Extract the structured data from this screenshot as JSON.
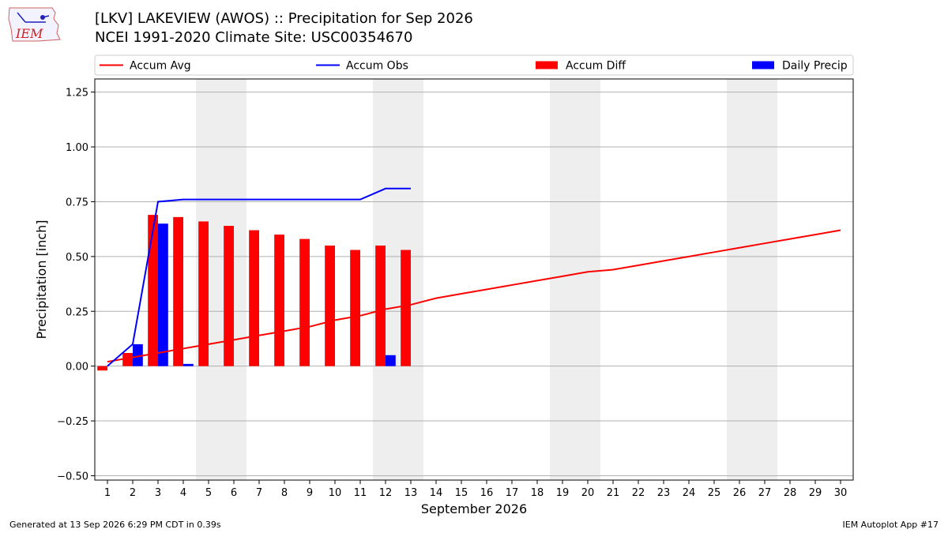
{
  "title": {
    "line1": "[LKV] LAKEVIEW (AWOS) :: Precipitation for Sep 2026",
    "line2": "NCEI 1991-2020 Climate Site: USC00354670"
  },
  "logo_text": "IEM",
  "footer": {
    "left": "Generated at 13 Sep 2026 6:29 PM CDT in 0.39s",
    "right": "IEM Autoplot App #17"
  },
  "colors": {
    "accum_avg": "#ff0000",
    "accum_obs": "#0000ff",
    "accum_diff": "#ff0000",
    "daily_precip": "#0000ff",
    "weekend_shade": "#eeeeee",
    "grid": "#b0b0b0"
  },
  "chart_data": {
    "type": "bar",
    "xlabel": "September 2026",
    "ylabel": "Precipitation [inch]",
    "ylim": [
      -0.52,
      1.31
    ],
    "yticks": [
      -0.5,
      -0.25,
      0.0,
      0.25,
      0.5,
      0.75,
      1.0,
      1.25
    ],
    "ytick_labels": [
      "−0.50",
      "−0.25",
      "0.00",
      "0.25",
      "0.50",
      "0.75",
      "1.00",
      "1.25"
    ],
    "x": [
      1,
      2,
      3,
      4,
      5,
      6,
      7,
      8,
      9,
      10,
      11,
      12,
      13,
      14,
      15,
      16,
      17,
      18,
      19,
      20,
      21,
      22,
      23,
      24,
      25,
      26,
      27,
      28,
      29,
      30
    ],
    "xlim": [
      0.5,
      30.5
    ],
    "grid": "horizontal",
    "legend_position": "top",
    "weekend_shading": [
      [
        5,
        6
      ],
      [
        12,
        13
      ],
      [
        19,
        20
      ],
      [
        26,
        27
      ]
    ],
    "series": [
      {
        "name": "Accum Avg",
        "type": "line",
        "x": [
          1,
          2,
          3,
          4,
          5,
          6,
          7,
          8,
          9,
          10,
          11,
          12,
          13,
          14,
          15,
          16,
          17,
          18,
          19,
          20,
          21,
          22,
          23,
          24,
          25,
          26,
          27,
          28,
          29,
          30
        ],
        "values": [
          0.02,
          0.04,
          0.06,
          0.08,
          0.1,
          0.12,
          0.14,
          0.16,
          0.18,
          0.21,
          0.23,
          0.26,
          0.28,
          0.31,
          0.33,
          0.35,
          0.37,
          0.39,
          0.41,
          0.43,
          0.44,
          0.46,
          0.48,
          0.5,
          0.52,
          0.54,
          0.56,
          0.58,
          0.6,
          0.62
        ]
      },
      {
        "name": "Accum Obs",
        "type": "line",
        "x": [
          1,
          2,
          3,
          4,
          5,
          6,
          7,
          8,
          9,
          10,
          11,
          12,
          13
        ],
        "values": [
          0.0,
          0.1,
          0.75,
          0.76,
          0.76,
          0.76,
          0.76,
          0.76,
          0.76,
          0.76,
          0.76,
          0.81,
          0.81
        ]
      },
      {
        "name": "Accum Diff",
        "type": "bar",
        "x": [
          1,
          2,
          3,
          4,
          5,
          6,
          7,
          8,
          9,
          10,
          11,
          12,
          13
        ],
        "values": [
          -0.02,
          0.06,
          0.69,
          0.68,
          0.66,
          0.64,
          0.62,
          0.6,
          0.58,
          0.55,
          0.53,
          0.55,
          0.53
        ]
      },
      {
        "name": "Daily Precip",
        "type": "bar",
        "x": [
          1,
          2,
          3,
          4,
          5,
          6,
          7,
          8,
          9,
          10,
          11,
          12,
          13
        ],
        "values": [
          0.0,
          0.1,
          0.65,
          0.01,
          0.0,
          0.0,
          0.0,
          0.0,
          0.0,
          0.0,
          0.0,
          0.05,
          0.0
        ]
      }
    ]
  }
}
